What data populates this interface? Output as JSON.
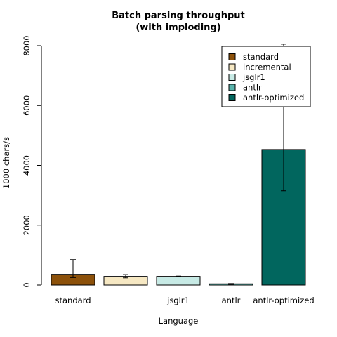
{
  "chart_data": {
    "type": "bar",
    "title_lines": [
      "Batch parsing throughput",
      "(with imploding)"
    ],
    "xlabel": "Language",
    "ylabel": "1000 chars/s",
    "categories": [
      "standard",
      "incremental",
      "jsglr1",
      "antlr",
      "antlr-optimized"
    ],
    "category_labels": [
      "standard",
      "",
      "jsglr1",
      "antlr",
      "antlr-optimized"
    ],
    "values": [
      360,
      290,
      290,
      40,
      4530
    ],
    "error_low": [
      250,
      240,
      270,
      25,
      3150
    ],
    "error_high": [
      850,
      350,
      300,
      50,
      8050
    ],
    "colors": [
      "#8c510a",
      "#f6e8c3",
      "#c7eae5",
      "#5ab4ac",
      "#01665e"
    ],
    "ylim": [
      0,
      8000
    ],
    "yticks": [
      0,
      2000,
      4000,
      6000,
      8000
    ],
    "legend": {
      "placement": "top-right",
      "entries": [
        "standard",
        "incremental",
        "jsglr1",
        "antlr",
        "antlr-optimized"
      ]
    },
    "grid": false
  }
}
